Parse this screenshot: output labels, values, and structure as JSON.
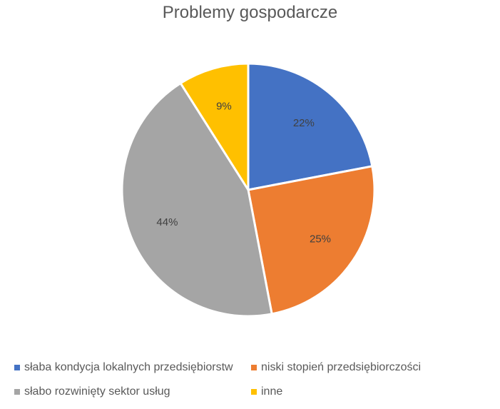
{
  "chart_data": {
    "type": "pie",
    "title": "Problemy gospodarcze",
    "slices": [
      {
        "label": "słaba kondycja lokalnych przedsiębiorstw",
        "value": 22,
        "data_label": "22%",
        "color": "#4472C4"
      },
      {
        "label": "niski stopień przedsiębiorczości",
        "value": 25,
        "data_label": "25%",
        "color": "#ED7D31"
      },
      {
        "label": "słabo rozwinięty sektor usług",
        "value": 44,
        "data_label": "44%",
        "color": "#A5A5A5"
      },
      {
        "label": "inne",
        "value": 9,
        "data_label": "9%",
        "color": "#FFC000"
      }
    ],
    "legend_position": "bottom",
    "start_angle": "top, clockwise"
  }
}
